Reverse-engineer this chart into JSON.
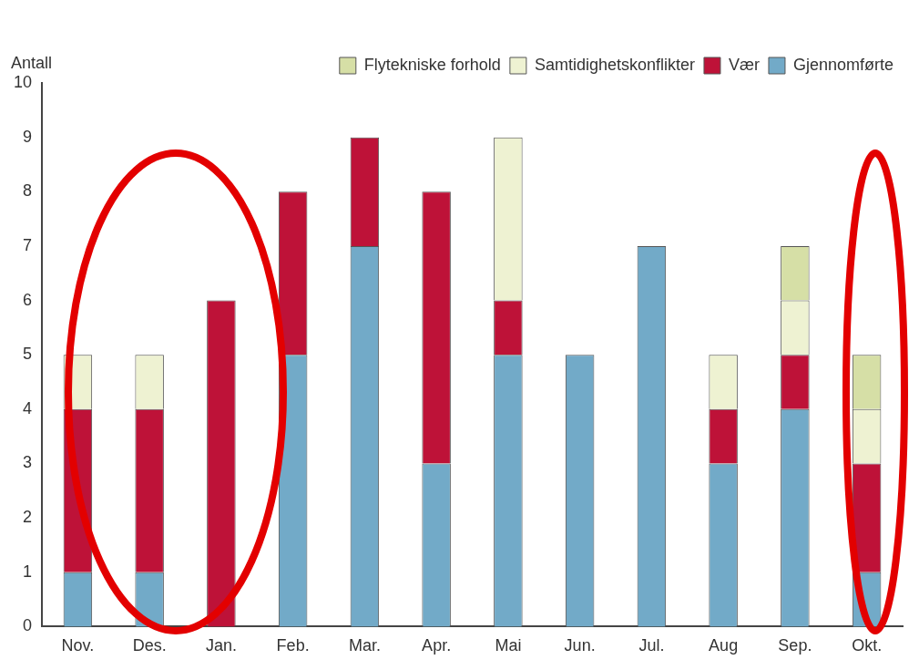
{
  "chart_data": {
    "type": "bar",
    "ylabel": "Antall",
    "categories": [
      "Nov.",
      "Des.",
      "Jan.",
      "Feb.",
      "Mar.",
      "Apr.",
      "Mai",
      "Jun.",
      "Jul.",
      "Aug",
      "Sep.",
      "Okt."
    ],
    "stacked": true,
    "series": [
      {
        "name": "Gjennomførte",
        "color": "#72aac8",
        "values": [
          1,
          1,
          0,
          5,
          7,
          3,
          5,
          5,
          7,
          3,
          4,
          1
        ]
      },
      {
        "name": "Vær",
        "color": "#be1238",
        "values": [
          3,
          3,
          6,
          3,
          2,
          5,
          1,
          0,
          0,
          1,
          1,
          2
        ]
      },
      {
        "name": "Samtidighetskonflikter",
        "color": "#eef2d2",
        "values": [
          1,
          1,
          0,
          0,
          0,
          0,
          3,
          0,
          0,
          1,
          1,
          1
        ]
      },
      {
        "name": "Flytekniske forhold",
        "color": "#d6dfa6",
        "values": [
          0,
          0,
          0,
          0,
          0,
          0,
          0,
          0,
          0,
          0,
          1,
          1
        ]
      }
    ],
    "ylim": [
      0,
      10
    ],
    "yticks": [
      0,
      1,
      2,
      3,
      4,
      5,
      6,
      7,
      8,
      9,
      10
    ],
    "grid": false,
    "legend": "top right"
  }
}
